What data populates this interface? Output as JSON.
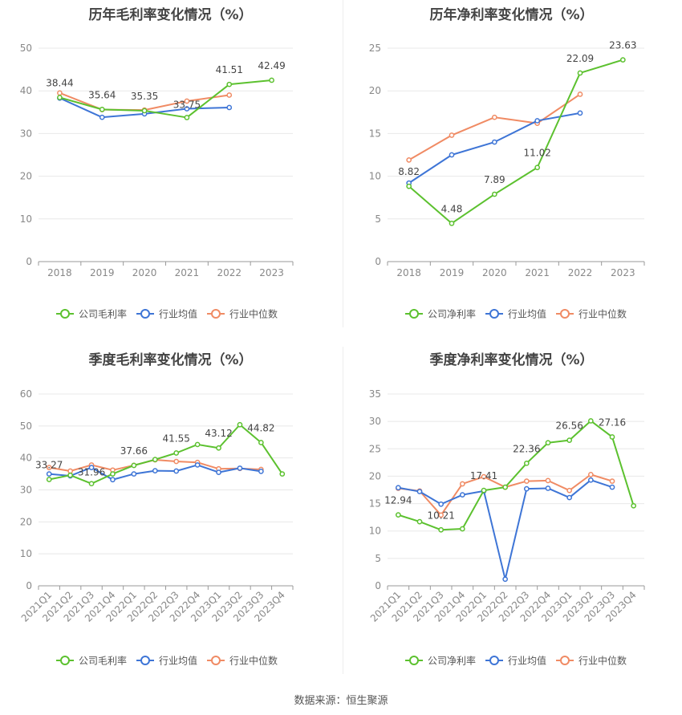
{
  "source_label": "数据来源：恒生聚源",
  "legend_labels": {
    "company_gross": "公司毛利率",
    "company_net": "公司净利率",
    "avg": "行业均值",
    "median": "行业中位数"
  },
  "colors": {
    "company": "#5cc12f",
    "avg": "#3e75d6",
    "median": "#f08b64",
    "grid": "#e8e8e8",
    "axis": "#999999"
  },
  "chart_data": [
    {
      "type": "line",
      "title": "历年毛利率变化情况（%）",
      "categories": [
        "2018",
        "2019",
        "2020",
        "2021",
        "2022",
        "2023"
      ],
      "ylim": [
        0,
        50
      ],
      "yticks": [
        0,
        10,
        20,
        30,
        40,
        50
      ],
      "series": [
        {
          "name": "公司毛利率",
          "values": [
            38.44,
            35.64,
            35.35,
            33.75,
            41.51,
            42.49
          ]
        },
        {
          "name": "行业均值",
          "values": [
            38.3,
            33.8,
            34.6,
            35.8,
            36.1,
            null
          ]
        },
        {
          "name": "行业中位数",
          "values": [
            39.5,
            35.6,
            35.5,
            37.6,
            39.0,
            null
          ]
        }
      ],
      "data_labels": [
        "38.44",
        "35.64",
        "35.35",
        "33.75",
        "41.51",
        "42.49"
      ],
      "legend": "bottom"
    },
    {
      "type": "line",
      "title": "历年净利率变化情况（%）",
      "categories": [
        "2018",
        "2019",
        "2020",
        "2021",
        "2022",
        "2023"
      ],
      "ylim": [
        0,
        25
      ],
      "yticks": [
        0,
        5,
        10,
        15,
        20,
        25
      ],
      "series": [
        {
          "name": "公司净利率",
          "values": [
            8.82,
            4.48,
            7.89,
            11.02,
            22.09,
            23.63
          ]
        },
        {
          "name": "行业均值",
          "values": [
            9.2,
            12.5,
            14.0,
            16.5,
            17.4,
            null
          ]
        },
        {
          "name": "行业中位数",
          "values": [
            11.9,
            14.8,
            16.9,
            16.2,
            19.6,
            null
          ]
        }
      ],
      "data_labels": [
        "8.82",
        "4.48",
        "7.89",
        "11.02",
        "22.09",
        "23.63"
      ],
      "legend": "bottom"
    },
    {
      "type": "line",
      "title": "季度毛利率变化情况（%）",
      "categories": [
        "2021Q1",
        "2021Q2",
        "2021Q3",
        "2021Q4",
        "2022Q1",
        "2022Q2",
        "2022Q3",
        "2022Q4",
        "2023Q1",
        "2023Q2",
        "2023Q3",
        "2023Q4"
      ],
      "ylim": [
        0,
        60
      ],
      "yticks": [
        0,
        10,
        20,
        30,
        40,
        50,
        60
      ],
      "series": [
        {
          "name": "公司毛利率",
          "values": [
            33.27,
            34.6,
            31.96,
            35.0,
            37.66,
            39.5,
            41.55,
            44.2,
            43.12,
            50.4,
            44.82,
            35.0
          ]
        },
        {
          "name": "行业均值",
          "values": [
            35.0,
            34.4,
            37.0,
            33.2,
            35.0,
            36.0,
            35.9,
            37.8,
            35.5,
            36.8,
            35.8,
            null
          ]
        },
        {
          "name": "行业中位数",
          "values": [
            37.0,
            35.9,
            37.8,
            36.2,
            37.7,
            39.4,
            38.9,
            38.6,
            36.6,
            36.7,
            36.4,
            null
          ]
        }
      ],
      "data_labels": [
        "33.27",
        "",
        "31.96",
        "",
        "37.66",
        "",
        "41.55",
        "",
        "43.12",
        "",
        "44.82",
        ""
      ],
      "legend": "bottom"
    },
    {
      "type": "line",
      "title": "季度净利率变化情况（%）",
      "categories": [
        "2021Q1",
        "2021Q2",
        "2021Q3",
        "2021Q4",
        "2022Q1",
        "2022Q2",
        "2022Q3",
        "2022Q4",
        "2023Q1",
        "2023Q2",
        "2023Q3",
        "2023Q4"
      ],
      "ylim": [
        0,
        35
      ],
      "yticks": [
        0,
        5,
        10,
        15,
        20,
        25,
        30,
        35
      ],
      "series": [
        {
          "name": "公司净利率",
          "values": [
            12.94,
            11.7,
            10.21,
            10.4,
            17.41,
            18.0,
            22.36,
            26.1,
            26.56,
            30.1,
            27.16,
            14.6
          ]
        },
        {
          "name": "行业均值",
          "values": [
            17.9,
            17.2,
            14.9,
            16.6,
            17.3,
            1.2,
            17.7,
            17.8,
            16.1,
            19.3,
            18.0,
            null
          ]
        },
        {
          "name": "行业中位数",
          "values": [
            17.8,
            17.3,
            12.9,
            18.6,
            19.9,
            18.0,
            19.1,
            19.2,
            17.4,
            20.3,
            19.1,
            null
          ]
        }
      ],
      "data_labels": [
        "12.94",
        "",
        "10.21",
        "",
        "17.41",
        "",
        "22.36",
        "",
        "26.56",
        "",
        "27.16",
        ""
      ],
      "legend": "bottom"
    }
  ]
}
